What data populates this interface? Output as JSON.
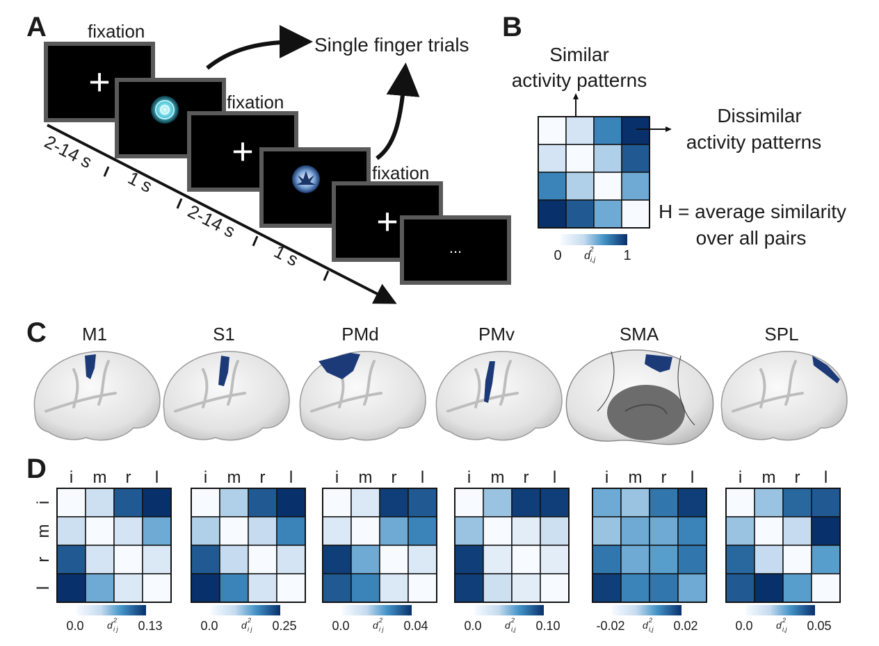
{
  "panels": {
    "a": "A",
    "b": "B",
    "c": "C",
    "d": "D"
  },
  "panel_a": {
    "fixation_label": "fixation",
    "trials_label": "Single finger trials",
    "timeline": [
      "2-14 s",
      "1 s",
      "2-14 s",
      "1 s"
    ],
    "screen_glyphs": {
      "cross": "+",
      "ellipsis": "..."
    }
  },
  "panel_b": {
    "similar_line1": "Similar",
    "similar_line2": "activity patterns",
    "dissimilar_line1": "Dissimilar",
    "dissimilar_line2": "activity patterns",
    "h_line1": "H = average similarity",
    "h_line2": "over all pairs",
    "scale_min": "0",
    "scale_max": "1",
    "scale_symbol": "d",
    "scale_sub": "i,j",
    "scale_sup": "2",
    "matrix": [
      [
        0,
        0.25,
        0.7,
        1
      ],
      [
        0.25,
        0,
        0.4,
        0.85
      ],
      [
        0.7,
        0.4,
        0,
        0.55
      ],
      [
        1,
        0.85,
        0.55,
        0
      ]
    ]
  },
  "colors": {
    "low": "#f7fbff",
    "high": "#08306b",
    "roi": "#1c3a78",
    "frame": "#5a5a5a"
  },
  "regions": [
    {
      "name": "M1",
      "view": "lateral",
      "roi": "central"
    },
    {
      "name": "S1",
      "view": "lateral",
      "roi": "postcentral"
    },
    {
      "name": "PMd",
      "view": "lateral",
      "roi": "dorsal-premotor"
    },
    {
      "name": "PMv",
      "view": "lateral",
      "roi": "ventral-premotor"
    },
    {
      "name": "SMA",
      "view": "medial",
      "roi": "medial-frontal"
    },
    {
      "name": "SPL",
      "view": "lateral",
      "roi": "parietal"
    }
  ],
  "matrix_labels": {
    "fingers": [
      "i",
      "m",
      "r",
      "l"
    ]
  },
  "matrices": [
    {
      "region": "M1",
      "min": "0.0",
      "max": "0.13",
      "sub": "i j",
      "values": [
        [
          0,
          0.3,
          0.85,
          1
        ],
        [
          0.3,
          0,
          0.25,
          0.55
        ],
        [
          0.85,
          0.25,
          0,
          0.2
        ],
        [
          1,
          0.55,
          0.2,
          0
        ]
      ]
    },
    {
      "region": "S1",
      "min": "0.0",
      "max": "0.25",
      "sub": "i j",
      "values": [
        [
          0,
          0.4,
          0.85,
          1
        ],
        [
          0.4,
          0,
          0.35,
          0.7
        ],
        [
          0.85,
          0.35,
          0,
          0.25
        ],
        [
          1,
          0.7,
          0.25,
          0
        ]
      ]
    },
    {
      "region": "PMd",
      "min": "0.0",
      "max": "0.04",
      "sub": "i j",
      "values": [
        [
          0,
          0.2,
          0.95,
          0.85
        ],
        [
          0.2,
          0,
          0.55,
          0.7
        ],
        [
          0.95,
          0.55,
          0,
          0.2
        ],
        [
          0.85,
          0.7,
          0.2,
          0
        ]
      ]
    },
    {
      "region": "PMv",
      "min": "0.0",
      "max": "0.10",
      "sub": "i,j",
      "values": [
        [
          0,
          0.45,
          0.95,
          0.95
        ],
        [
          0.45,
          0,
          0.15,
          0.3
        ],
        [
          0.95,
          0.15,
          0,
          0.15
        ],
        [
          0.95,
          0.3,
          0.15,
          0
        ]
      ]
    },
    {
      "region": "SMA",
      "min": "-0.02",
      "max": "0.02",
      "sub": "i,j",
      "values": [
        [
          0.55,
          0.45,
          0.75,
          0.95
        ],
        [
          0.45,
          0.55,
          0.55,
          0.7
        ],
        [
          0.75,
          0.55,
          0.6,
          0.75
        ],
        [
          0.95,
          0.7,
          0.75,
          0.55
        ]
      ]
    },
    {
      "region": "SPL",
      "min": "0.0",
      "max": "0.05",
      "sub": "i,j",
      "values": [
        [
          0,
          0.45,
          0.8,
          0.85
        ],
        [
          0.45,
          0,
          0.35,
          1
        ],
        [
          0.8,
          0.35,
          0,
          0.6
        ],
        [
          0.85,
          1,
          0.6,
          0
        ]
      ]
    }
  ]
}
